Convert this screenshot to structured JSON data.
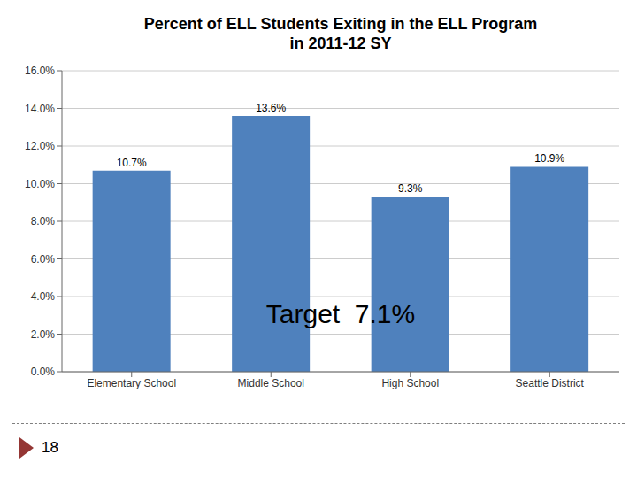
{
  "chart_data": {
    "type": "bar",
    "title": "Percent of ELL Students Exiting in the ELL Program\nin 2011-12 SY",
    "categories": [
      "Elementary School",
      "Middle School",
      "High School",
      "Seattle District"
    ],
    "values": [
      10.7,
      13.6,
      9.3,
      10.9
    ],
    "value_labels": [
      "10.7%",
      "13.6%",
      "9.3%",
      "10.9%"
    ],
    "data_labels": true,
    "color": "#4F81BD",
    "ylim": [
      0,
      16
    ],
    "yticks": [
      {
        "value": 0,
        "label": "0.0%"
      },
      {
        "value": 2,
        "label": "2.0%"
      },
      {
        "value": 4,
        "label": "4.0%"
      },
      {
        "value": 6,
        "label": "6.0%"
      },
      {
        "value": 8,
        "label": "8.0%"
      },
      {
        "value": 10,
        "label": "10.0%"
      },
      {
        "value": 12,
        "label": "12.0%"
      },
      {
        "value": 14,
        "label": "14.0%"
      },
      {
        "value": 16,
        "label": "16.0%"
      }
    ],
    "grid": true,
    "annotations": [
      "Target  7.1%",
      "18"
    ]
  }
}
